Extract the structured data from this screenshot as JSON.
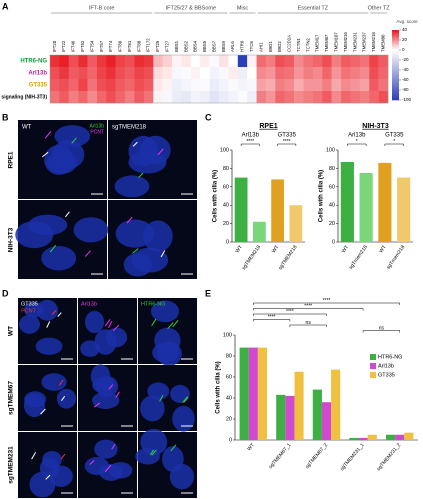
{
  "panels": {
    "letters": [
      "A",
      "B",
      "C",
      "D",
      "E"
    ],
    "B": {
      "columns": [
        "WT",
        "sgTMEM218"
      ],
      "rows": [
        "RPE1",
        "NIH-3T3"
      ],
      "channels": [
        "Arl13b",
        "PCNT"
      ]
    },
    "D": {
      "columns": [
        "GT335",
        "Arl13b",
        "HTR6-NG"
      ],
      "sub_channel": "PCNT",
      "rows": [
        "WT",
        "sgTMEM67",
        "sgTMEM231"
      ]
    }
  },
  "chart_data": [
    {
      "type": "heatmap",
      "groups": [
        {
          "label": "IFT-B core",
          "members": [
            "IFT20",
            "IFT22",
            "IFT46",
            "IFT52",
            "IFT54",
            "IFT57",
            "IFT74",
            "IFT80",
            "IFT81",
            "IFT88",
            "IFT172"
          ]
        },
        {
          "label": "IFT25/27 & BBSome",
          "members": [
            "IFT25",
            "IFT27",
            "BBS1",
            "BBS2",
            "BBS4",
            "BBS5",
            "BBS7",
            "BBS9"
          ]
        },
        {
          "label": "Misc",
          "members": [
            "ARL6",
            "HTR6",
            "TTC8"
          ]
        },
        {
          "label": "Essential TZ",
          "members": [
            "AHI1",
            "B9D1",
            "B9D2",
            "CC2D2A",
            "TCTN1",
            "TCTN2",
            "TMEM17",
            "TMEM67",
            "TMEM107",
            "TMEM216",
            "TMEM231",
            "TMEM237"
          ]
        },
        {
          "label": "Other TZ",
          "members": [
            "TMEM218",
            "TMEM80"
          ]
        }
      ],
      "rows": [
        "HTR6-NG",
        "Arl13b",
        "GT335",
        "Hh signaling (NIH-3T3)"
      ],
      "row_colors": [
        "#1a9a3a",
        "#c2189a",
        "#e0a000",
        "#000000"
      ],
      "values": [
        [
          35,
          38,
          30,
          36,
          28,
          34,
          38,
          32,
          30,
          36,
          34,
          12,
          8,
          2,
          4,
          0,
          3,
          -2,
          5,
          0,
          -100,
          2,
          25,
          22,
          30,
          28,
          20,
          24,
          26,
          30,
          22,
          28,
          26,
          24,
          32,
          28
        ],
        [
          30,
          34,
          28,
          30,
          26,
          32,
          35,
          30,
          28,
          32,
          30,
          6,
          4,
          -4,
          -2,
          2,
          0,
          -6,
          -3,
          3,
          -8,
          0,
          20,
          18,
          25,
          24,
          18,
          22,
          20,
          26,
          18,
          24,
          22,
          20,
          30,
          26
        ],
        [
          28,
          30,
          26,
          32,
          24,
          30,
          32,
          28,
          26,
          30,
          28,
          4,
          2,
          -8,
          -5,
          -3,
          -2,
          -10,
          -6,
          -2,
          -5,
          -4,
          16,
          14,
          22,
          20,
          14,
          18,
          18,
          22,
          15,
          20,
          18,
          16,
          28,
          24
        ],
        [
          24,
          28,
          22,
          26,
          20,
          26,
          30,
          26,
          22,
          28,
          24,
          2,
          -4,
          -10,
          -12,
          -6,
          -8,
          -14,
          -10,
          -6,
          -2,
          -8,
          22,
          18,
          26,
          24,
          20,
          22,
          24,
          28,
          20,
          26,
          24,
          22,
          26,
          30
        ]
      ],
      "color_scale": {
        "max_color": "#e8141c",
        "min_color": "#2b3fb8",
        "mid_color": "#ffffff"
      },
      "colorbar_title": "Avg. score",
      "clim": [
        -100,
        40
      ],
      "cticks": [
        40,
        20,
        0,
        -20,
        -40,
        -60,
        -80,
        -100
      ]
    },
    {
      "type": "bar",
      "title": "RPE1",
      "groups": [
        "Arl13b",
        "GT335"
      ],
      "categories": [
        "WT",
        "sgTMEM218",
        "WT",
        "sgTMEM218"
      ],
      "values": [
        70,
        22,
        68,
        40
      ],
      "colors": [
        "#3cb043",
        "#7ad67a",
        "#e0a020",
        "#f2c96a"
      ],
      "ylabel": "Cells with cilia (%)",
      "ylim": [
        0,
        100
      ],
      "yticks": [
        0,
        20,
        40,
        60,
        80,
        100
      ],
      "significance": [
        {
          "from": 0,
          "to": 1,
          "label": "****"
        },
        {
          "from": 2,
          "to": 3,
          "label": "****"
        }
      ]
    },
    {
      "type": "bar",
      "title": "NIH-3T3",
      "groups": [
        "Arl13b",
        "GT335"
      ],
      "categories": [
        "WT",
        "sgTmem218",
        "WT",
        "sgTmem218"
      ],
      "values": [
        87,
        75,
        86,
        70
      ],
      "colors": [
        "#3cb043",
        "#7ad67a",
        "#e0a020",
        "#f2c96a"
      ],
      "ylabel": "Cells with cilia (%)",
      "ylim": [
        0,
        100
      ],
      "yticks": [
        0,
        20,
        40,
        60,
        80,
        100
      ],
      "significance": [
        {
          "from": 0,
          "to": 1,
          "label": "*"
        },
        {
          "from": 2,
          "to": 3,
          "label": "*"
        }
      ]
    },
    {
      "type": "bar",
      "categories": [
        "WT",
        "sgTMEM67_1",
        "sgTMEM67_2",
        "sgTMEM231_1",
        "sgTMEM231_2"
      ],
      "series": [
        {
          "name": "HTR6-NG",
          "color": "#3cb043",
          "values": [
            88,
            43,
            48,
            2,
            5
          ]
        },
        {
          "name": "Arl13b",
          "color": "#d04ad0",
          "values": [
            88,
            42,
            36,
            2,
            5
          ]
        },
        {
          "name": "GT335",
          "color": "#f0c040",
          "values": [
            88,
            65,
            67,
            5,
            7
          ]
        }
      ],
      "ylabel": "Cells with cilia (%)",
      "ylim": [
        0,
        100
      ],
      "yticks": [
        0,
        20,
        40,
        60,
        80,
        100
      ],
      "significance": [
        {
          "from": 0,
          "to": 4,
          "label": "****"
        },
        {
          "from": 0,
          "to": 3,
          "label": "****"
        },
        {
          "from": 0,
          "to": 2,
          "label": "****"
        },
        {
          "from": 0,
          "to": 1,
          "label": "****"
        },
        {
          "from": 1,
          "to": 2,
          "label": "ns"
        },
        {
          "from": 3,
          "to": 4,
          "label": "ns"
        }
      ]
    }
  ]
}
